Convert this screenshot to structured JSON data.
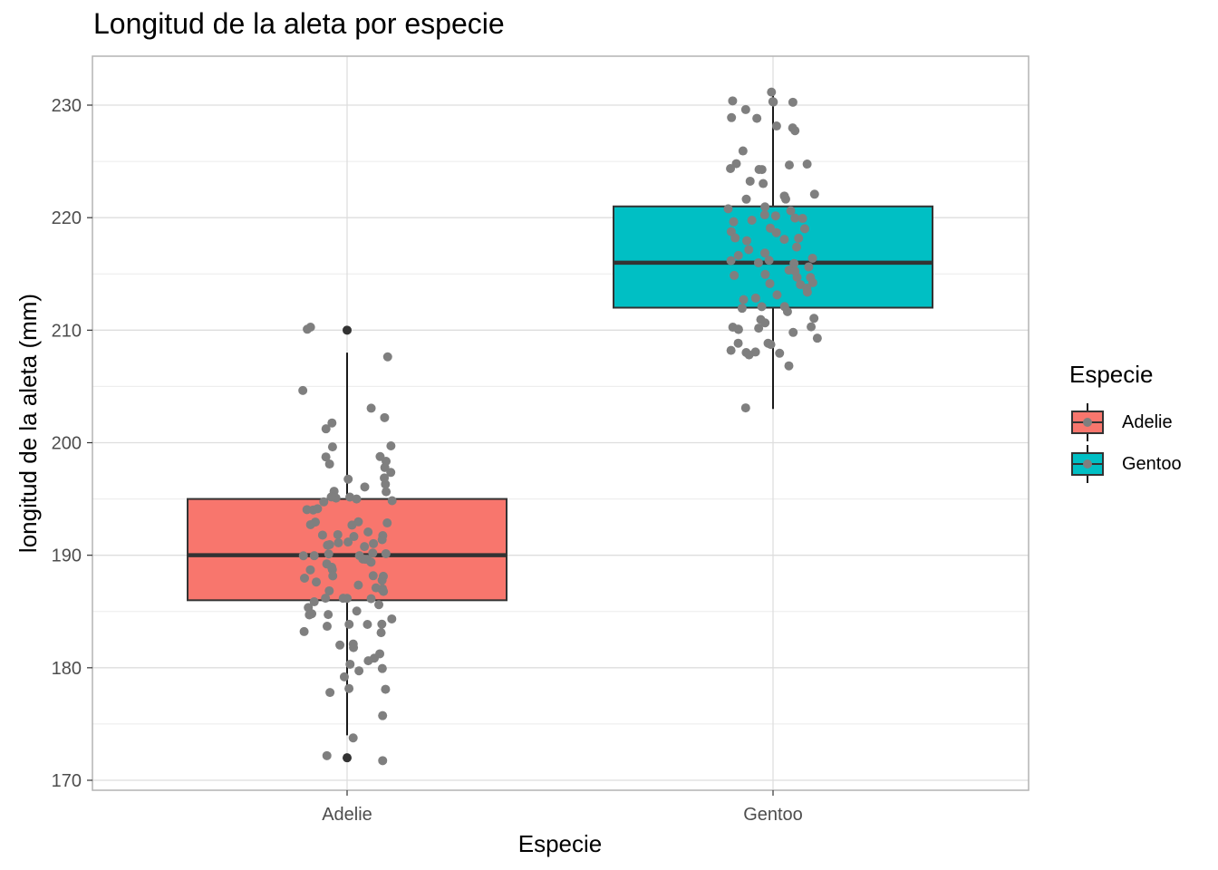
{
  "chart_data": {
    "type": "boxplot",
    "title": "Longitud de la aleta por especie",
    "xlabel": "Especie",
    "ylabel": "longitud de la aleta (mm)",
    "ylim": [
      169,
      234
    ],
    "yticks": [
      170,
      180,
      190,
      200,
      210,
      220,
      230
    ],
    "categories": [
      "Adelie",
      "Gentoo"
    ],
    "grid": true,
    "legend": {
      "title": "Especie",
      "position": "right"
    },
    "series": [
      {
        "name": "Adelie",
        "color": "#F8766D",
        "q1": 186,
        "median": 190,
        "q3": 195,
        "whisker_low": 174,
        "whisker_high": 208,
        "outliers": [
          172,
          210
        ],
        "points": [
          210,
          208,
          205,
          203,
          202,
          202,
          201,
          200,
          200,
          199,
          199,
          198,
          198,
          198,
          197,
          197,
          197,
          196,
          196,
          196,
          196,
          195,
          195,
          195,
          195,
          195,
          195,
          194,
          194,
          194,
          193,
          193,
          193,
          193,
          193,
          192,
          192,
          192,
          192,
          192,
          191,
          191,
          191,
          191,
          191,
          191,
          191,
          190,
          190,
          190,
          190,
          190,
          190,
          190,
          190,
          190,
          189,
          189,
          189,
          189,
          189,
          188,
          188,
          188,
          188,
          188,
          188,
          187,
          187,
          187,
          187,
          187,
          187,
          186,
          186,
          186,
          186,
          186,
          186,
          185,
          185,
          185,
          185,
          185,
          184,
          184,
          184,
          184,
          184,
          183,
          183,
          182,
          182,
          182,
          181,
          181,
          181,
          180,
          180,
          180,
          179,
          178,
          178,
          178,
          176,
          174,
          172,
          210,
          172
        ]
      },
      {
        "name": "Gentoo",
        "color": "#00BFC4",
        "q1": 212,
        "median": 216,
        "q3": 221,
        "whisker_low": 203,
        "whisker_high": 231,
        "outliers": [],
        "points": [
          231,
          230,
          230,
          230,
          230,
          230,
          229,
          229,
          228,
          228,
          228,
          226,
          225,
          225,
          225,
          224,
          224,
          224,
          223,
          223,
          222,
          222,
          222,
          222,
          221,
          221,
          221,
          220,
          220,
          220,
          220,
          220,
          220,
          219,
          219,
          219,
          219,
          218,
          218,
          218,
          218,
          217,
          217,
          217,
          217,
          216,
          216,
          216,
          216,
          216,
          216,
          215,
          215,
          215,
          215,
          215,
          215,
          214,
          214,
          214,
          214,
          213,
          213,
          213,
          213,
          212,
          212,
          212,
          212,
          211,
          211,
          211,
          210,
          210,
          210,
          210,
          210,
          210,
          209,
          209,
          209,
          209,
          208,
          208,
          208,
          208,
          208,
          207,
          203
        ]
      }
    ],
    "point_color": "#7f7f7f",
    "outlier_color": "#333333"
  }
}
